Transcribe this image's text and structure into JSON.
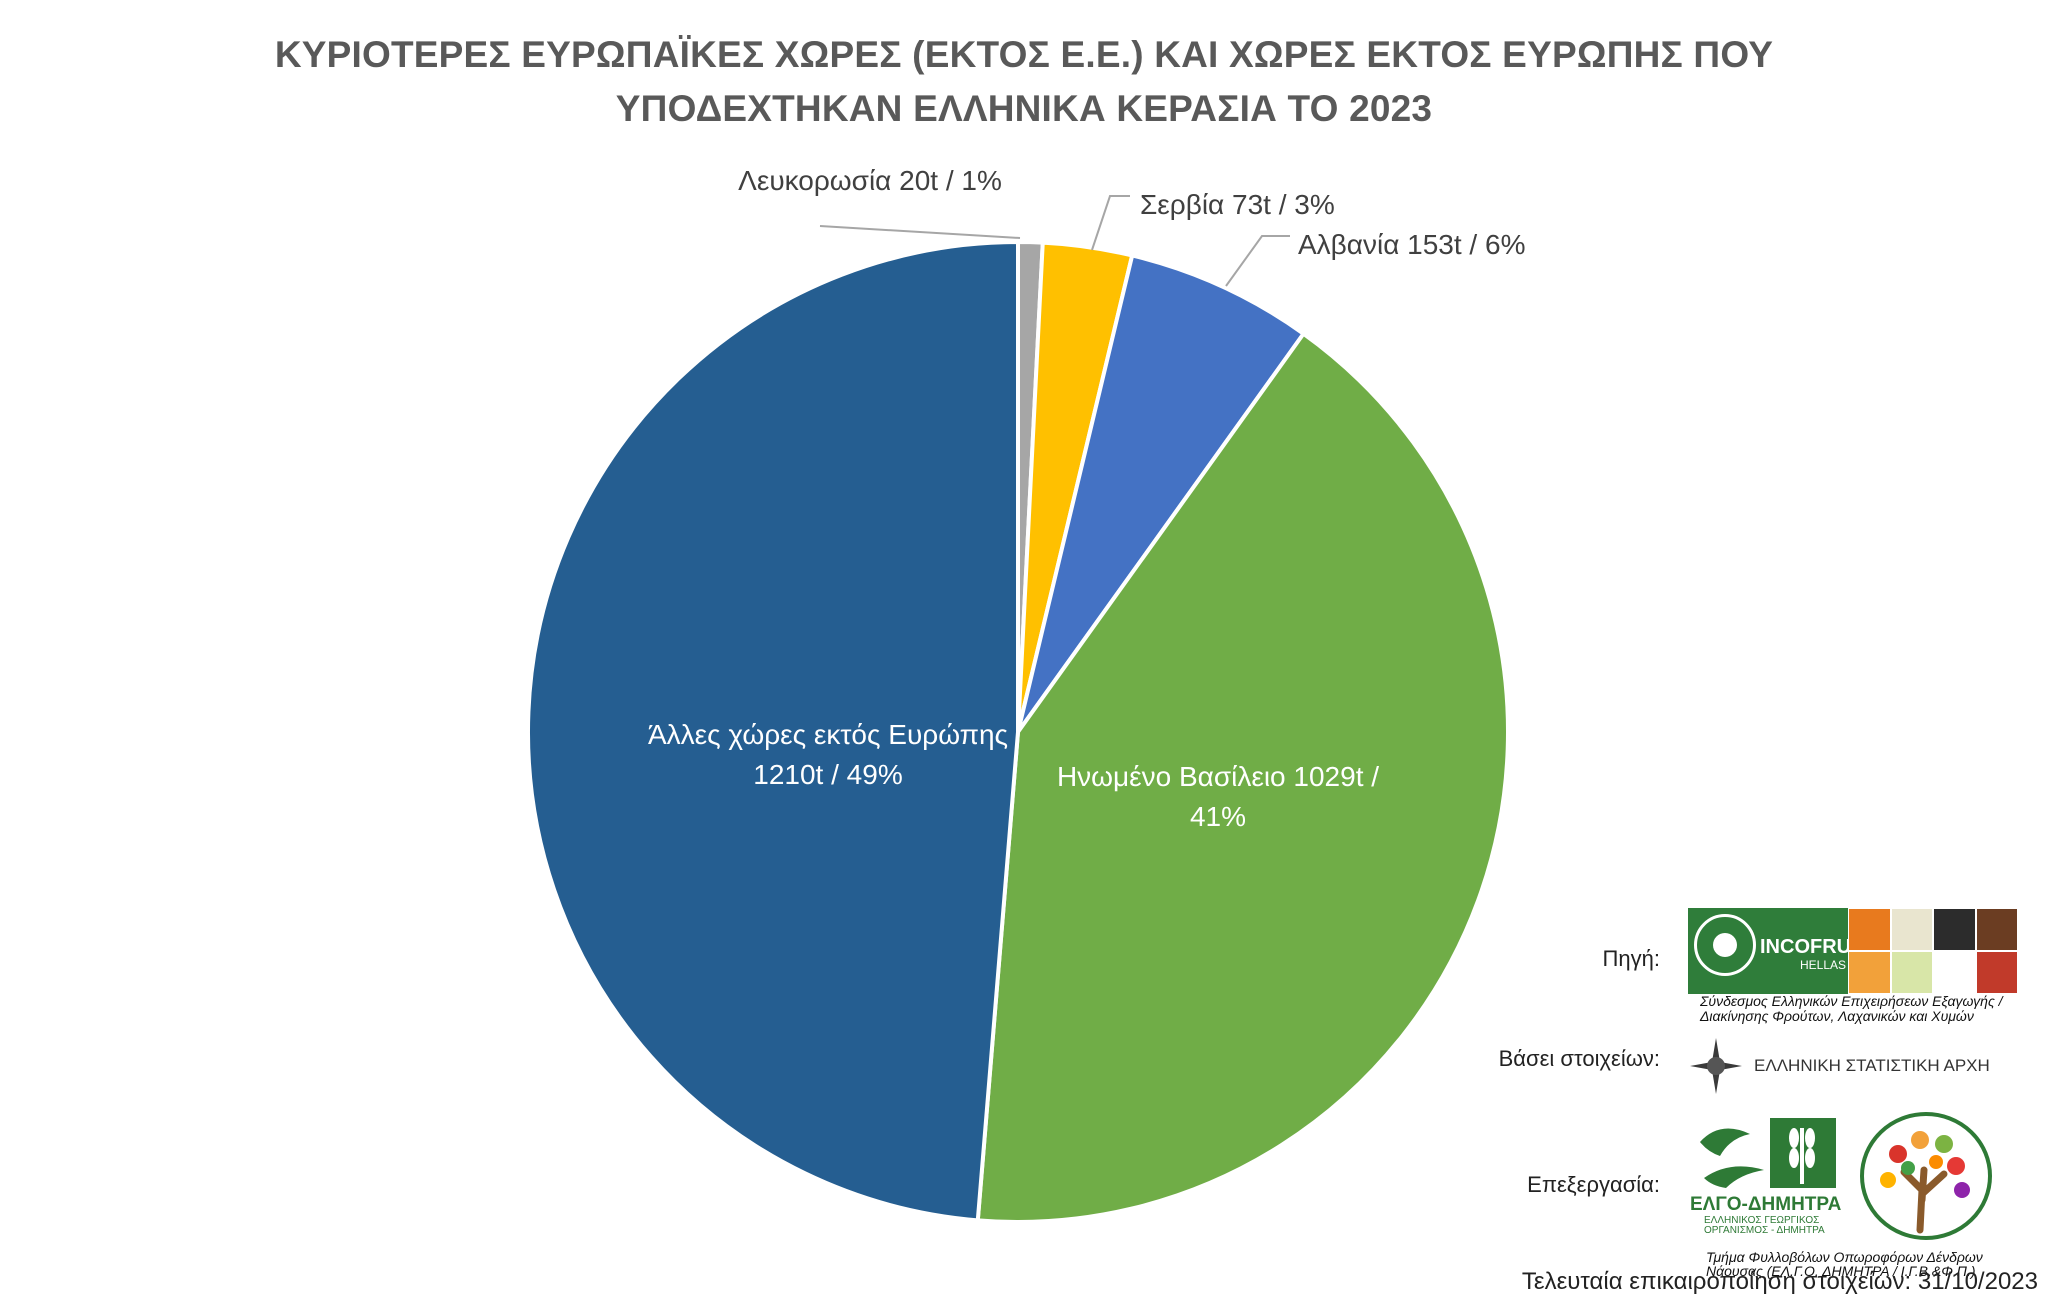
{
  "chart_data": {
    "type": "pie",
    "title_lines": [
      "ΚΥΡΙΟΤΕΡΕΣ ΕΥΡΩΠΑΪΚΕΣ ΧΩΡΕΣ (ΕΚΤΟΣ Ε.Ε.) ΚΑΙ ΧΩΡΕΣ ΕΚΤΟΣ ΕΥΡΩΠΗΣ ΠΟΥ",
      "ΥΠΟΔΕΧΤΗΚΑΝ ΕΛΛΗΝΙΚΑ ΚΕΡΑΣΙΑ ΤΟ 2023"
    ],
    "slices": [
      {
        "value": 20,
        "color": "#a6a6a6",
        "label_lines": [
          "Λευκορωσία 20t / 1%"
        ],
        "label_inside": false
      },
      {
        "value": 73,
        "color": "#ffc000",
        "label_lines": [
          "Σερβία 73t / 3%"
        ],
        "label_inside": false
      },
      {
        "value": 153,
        "color": "#4472c4",
        "label_lines": [
          "Αλβανία 153t / 6%"
        ],
        "label_inside": false
      },
      {
        "value": 1029,
        "color": "#70ad47",
        "label_lines": [
          "Ηνωμένο Βασίλειο 1029t /",
          "41%"
        ],
        "label_inside": true
      },
      {
        "value": 1210,
        "color": "#255e91",
        "label_lines": [
          "Άλλες χώρες εκτός Ευρώπης",
          "1210t / 49%"
        ],
        "label_inside": true
      }
    ]
  },
  "footer": {
    "source_label": "Πηγή:",
    "database_label": "Βάσει στοιχείων:",
    "processing_label": "Επεξεργασία:",
    "update_text": "Τελευταία επικαιροποίηση στοιχείων: 31/10/2023"
  },
  "logos": {
    "incofruit": {
      "name": "INCOFRUIT",
      "sub": "HELLAS",
      "description": "Σύνδεσμος Ελληνικών Επιχειρήσεων Εξαγωγής / Διακίνησης Φρούτων, Λαχανικών και Χυμών",
      "brand_color": "#2f7d3a"
    },
    "elstat": {
      "name": "ΕΛΛΗΝΙΚΗ ΣΤΑΤΙΣΤΙΚΗ ΑΡΧΗ"
    },
    "elgo": {
      "name": "ΕΛΓΟ-ΔΗΜΗΤΡΑ",
      "sub": "ΕΛΛΗΝΙΚΟΣ ΓΕΩΡΓΙΚΟΣ ΟΡΓΑΝΙΣΜΟΣ - ΔΗΜΗΤΡΑ",
      "description": "Τμήμα Φυλλοβόλων Οπωροφόρων Δένδρων Νάουσας (ΕΛ.Γ.Ο. ΔΗΜΗΤΡΑ / Ι.Γ.Β.&Φ.Π.)",
      "brand_color": "#2e7a36"
    }
  }
}
